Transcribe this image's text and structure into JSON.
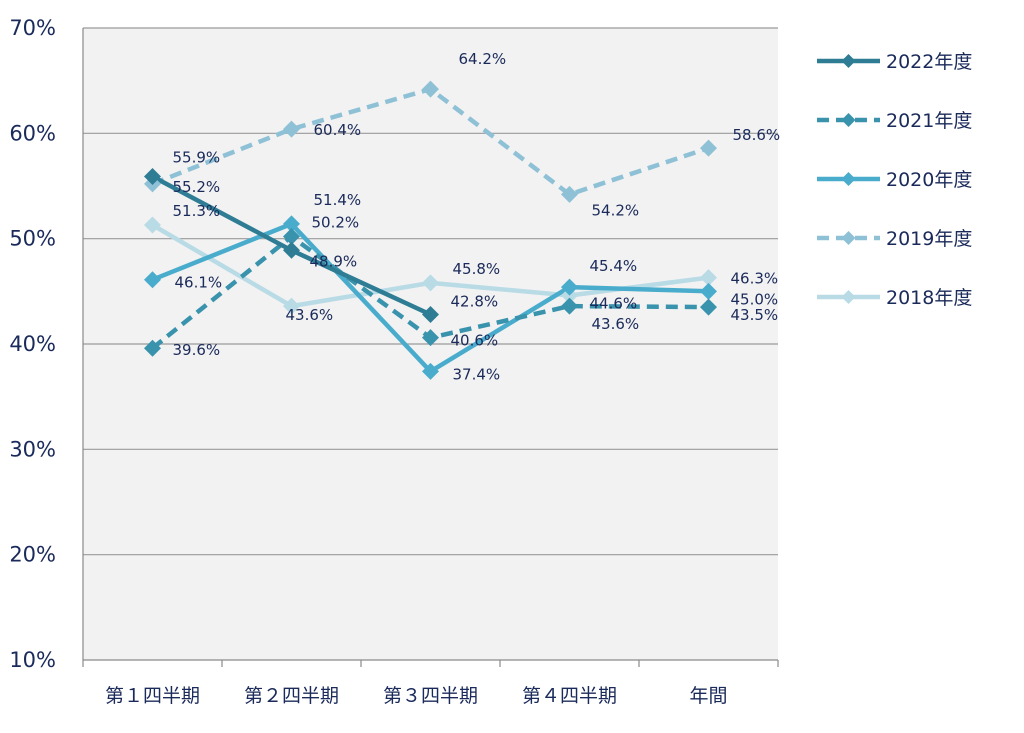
{
  "chart_data": {
    "type": "line",
    "categories": [
      "第１四半期",
      "第２四半期",
      "第３四半期",
      "第４四半期",
      "年間"
    ],
    "ylim": [
      10,
      70
    ],
    "yticks": [
      "10%",
      "20%",
      "30%",
      "40%",
      "50%",
      "60%",
      "70%"
    ],
    "ytick_values": [
      10,
      20,
      30,
      40,
      50,
      60,
      70
    ],
    "grid": true,
    "legend_position": "right",
    "series": [
      {
        "name": "2022年度",
        "color": "#2e7d95",
        "dashed": false,
        "values": [
          55.9,
          48.9,
          42.8,
          null,
          null
        ],
        "labels": [
          "55.9%",
          "48.9%",
          "42.8%",
          null,
          null
        ]
      },
      {
        "name": "2021年度",
        "color": "#3a93ad",
        "dashed": true,
        "values": [
          39.6,
          50.2,
          40.6,
          43.6,
          43.5
        ],
        "labels": [
          "39.6%",
          "50.2%",
          "40.6%",
          "43.6%",
          "43.5%"
        ]
      },
      {
        "name": "2020年度",
        "color": "#4aaccc",
        "dashed": false,
        "values": [
          46.1,
          51.4,
          37.4,
          45.4,
          45.0
        ],
        "labels": [
          "46.1%",
          "51.4%",
          "37.4%",
          "45.4%",
          "45.0%"
        ]
      },
      {
        "name": "2019年度",
        "color": "#8fc1d6",
        "dashed": true,
        "values": [
          55.2,
          60.4,
          64.2,
          54.2,
          58.6
        ],
        "labels": [
          "55.2%",
          "60.4%",
          "64.2%",
          "54.2%",
          "58.6%"
        ]
      },
      {
        "name": "2018年度",
        "color": "#b9dbe6",
        "dashed": false,
        "values": [
          51.3,
          43.6,
          45.8,
          44.6,
          46.3
        ],
        "labels": [
          "51.3%",
          "43.6%",
          "45.8%",
          "44.6%",
          "46.3%"
        ]
      }
    ]
  }
}
